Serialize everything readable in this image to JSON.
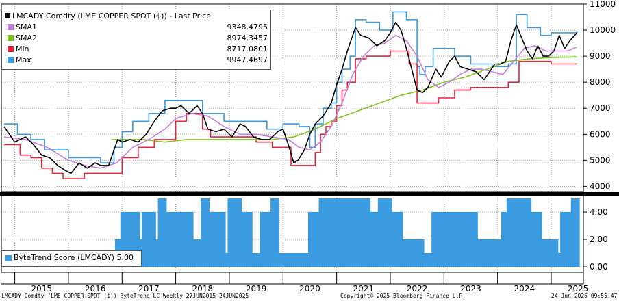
{
  "chart_data": {
    "type": "line",
    "x_unit": "year",
    "xlim": [
      2014.75,
      2025.6
    ],
    "top_panel": {
      "title": "LMCADY Comdty (LME COPPER   SPOT ($)) - Last Price",
      "ylim": [
        3800,
        11000
      ],
      "yticks": [
        4000,
        5000,
        6000,
        7000,
        8000,
        9000,
        10000,
        11000
      ],
      "legend": [
        {
          "name": "SMA1",
          "value": "9348.4795",
          "color": "#c77ddc"
        },
        {
          "name": "SMA2",
          "value": "8974.3457",
          "color": "#7fc31c"
        },
        {
          "name": "Min",
          "value": "8717.0801",
          "color": "#e8243c"
        },
        {
          "name": "Max",
          "value": "9947.4697",
          "color": "#3b9be0"
        }
      ],
      "series": [
        {
          "name": "LMCADY Comdty (LME COPPER   SPOT ($)) - Last Price",
          "color": "#000000",
          "x": [
            2014.8,
            2015.0,
            2015.2,
            2015.35,
            2015.5,
            2015.65,
            2015.8,
            2015.95,
            2016.05,
            2016.2,
            2016.35,
            2016.5,
            2016.6,
            2016.75,
            2016.85,
            2016.92,
            2017.0,
            2017.15,
            2017.3,
            2017.45,
            2017.6,
            2017.75,
            2017.9,
            2018.0,
            2018.1,
            2018.25,
            2018.4,
            2018.5,
            2018.6,
            2018.75,
            2018.9,
            2019.05,
            2019.2,
            2019.3,
            2019.45,
            2019.6,
            2019.75,
            2019.9,
            2020.0,
            2020.1,
            2020.2,
            2020.28,
            2020.4,
            2020.5,
            2020.6,
            2020.75,
            2020.9,
            2021.0,
            2021.1,
            2021.2,
            2021.35,
            2021.45,
            2021.6,
            2021.75,
            2021.9,
            2022.0,
            2022.1,
            2022.2,
            2022.3,
            2022.4,
            2022.5,
            2022.6,
            2022.7,
            2022.85,
            2022.95,
            2023.1,
            2023.2,
            2023.3,
            2023.45,
            2023.6,
            2023.75,
            2023.85,
            2023.95,
            2024.05,
            2024.15,
            2024.25,
            2024.35,
            2024.45,
            2024.55,
            2024.65,
            2024.75,
            2024.85,
            2024.95,
            2025.05,
            2025.15,
            2025.25,
            2025.35,
            2025.48
          ],
          "values": [
            6300,
            5700,
            5900,
            5600,
            5200,
            5100,
            4800,
            4600,
            4500,
            4900,
            4700,
            4900,
            4800,
            4800,
            5400,
            5800,
            5700,
            5800,
            5700,
            6000,
            6500,
            6900,
            7000,
            7000,
            7100,
            6800,
            7100,
            6800,
            6200,
            6100,
            6200,
            5900,
            6400,
            6300,
            5900,
            5800,
            5800,
            6100,
            6200,
            5600,
            4900,
            5000,
            5400,
            6000,
            6400,
            6700,
            7200,
            7900,
            8500,
            9200,
            10100,
            9800,
            9700,
            9400,
            9600,
            9900,
            10300,
            10000,
            9300,
            8500,
            7700,
            7600,
            7800,
            8500,
            8200,
            8800,
            9000,
            8600,
            8500,
            8400,
            8100,
            8400,
            8700,
            8700,
            8800,
            9600,
            10200,
            9700,
            9200,
            8900,
            9400,
            9000,
            9000,
            9200,
            9800,
            9300,
            9600,
            9900
          ]
        },
        {
          "name": "SMA1",
          "color": "#c77ddc",
          "x": [
            2014.8,
            2015.2,
            2015.6,
            2016.0,
            2016.3,
            2016.6,
            2016.9,
            2017.2,
            2017.5,
            2017.8,
            2018.0,
            2018.3,
            2018.6,
            2018.9,
            2019.2,
            2019.5,
            2019.8,
            2020.1,
            2020.3,
            2020.5,
            2020.7,
            2020.9,
            2021.1,
            2021.3,
            2021.5,
            2021.7,
            2021.9,
            2022.1,
            2022.3,
            2022.5,
            2022.7,
            2022.9,
            2023.1,
            2023.3,
            2023.5,
            2023.7,
            2023.9,
            2024.1,
            2024.3,
            2024.5,
            2024.7,
            2024.9,
            2025.1,
            2025.3,
            2025.48
          ],
          "values": [
            5900,
            5800,
            5500,
            5000,
            4800,
            4700,
            4900,
            5500,
            5800,
            6200,
            6600,
            6800,
            6700,
            6300,
            6000,
            6000,
            5900,
            5800,
            5500,
            5400,
            5700,
            6300,
            7200,
            8300,
            9000,
            9400,
            9500,
            9800,
            9600,
            9000,
            8100,
            7800,
            8000,
            8300,
            8500,
            8500,
            8400,
            8300,
            8800,
            9300,
            9400,
            9200,
            9200,
            9200,
            9350
          ]
        },
        {
          "name": "SMA2",
          "color": "#7fc31c",
          "x": [
            2016.8,
            2017.0,
            2017.4,
            2017.8,
            2018.2,
            2018.6,
            2019.0,
            2019.4,
            2019.8,
            2020.2,
            2020.6,
            2021.0,
            2021.4,
            2021.8,
            2022.2,
            2022.6,
            2023.0,
            2023.4,
            2023.8,
            2024.2,
            2024.6,
            2025.0,
            2025.48
          ],
          "values": [
            5800,
            5800,
            5800,
            5700,
            5800,
            5800,
            5800,
            5800,
            5800,
            5900,
            6200,
            6600,
            6900,
            7200,
            7500,
            7700,
            8000,
            8200,
            8500,
            8800,
            8900,
            8950,
            8970
          ]
        },
        {
          "name": "Min",
          "color": "#e8243c",
          "step": true,
          "x": [
            2014.8,
            2015.1,
            2015.3,
            2015.5,
            2015.7,
            2015.9,
            2016.3,
            2016.9,
            2017.0,
            2017.3,
            2017.6,
            2018.0,
            2018.2,
            2018.5,
            2018.65,
            2019.2,
            2019.5,
            2019.8,
            2020.15,
            2020.3,
            2020.45,
            2020.6,
            2020.7,
            2020.8,
            2020.9,
            2021.0,
            2021.1,
            2021.2,
            2021.35,
            2021.55,
            2021.8,
            2022.0,
            2022.35,
            2022.5,
            2022.9,
            2023.2,
            2023.5,
            2023.8,
            2024.0,
            2024.2,
            2024.4,
            2024.7,
            2025.0,
            2025.48
          ],
          "values": [
            5600,
            5200,
            5100,
            4700,
            4500,
            4300,
            4500,
            4500,
            5100,
            5500,
            5800,
            6500,
            6800,
            6200,
            5900,
            5900,
            5700,
            5500,
            4800,
            4800,
            4800,
            5300,
            6000,
            6300,
            6500,
            7100,
            7700,
            8000,
            8900,
            9000,
            9000,
            9200,
            8700,
            7200,
            7400,
            7700,
            7800,
            7800,
            7800,
            8000,
            8800,
            8800,
            8700,
            8700
          ]
        },
        {
          "name": "Max",
          "color": "#3b9be0",
          "step": true,
          "x": [
            2014.8,
            2015.05,
            2015.3,
            2015.55,
            2016.0,
            2016.6,
            2016.85,
            2017.0,
            2017.2,
            2017.5,
            2017.8,
            2018.5,
            2018.9,
            2019.3,
            2019.7,
            2020.0,
            2020.3,
            2020.5,
            2020.6,
            2020.75,
            2020.9,
            2021.0,
            2021.1,
            2021.25,
            2021.35,
            2021.55,
            2021.8,
            2022.05,
            2022.3,
            2022.5,
            2022.55,
            2022.65,
            2022.8,
            2023.2,
            2023.5,
            2023.9,
            2024.2,
            2024.35,
            2024.55,
            2024.8,
            2025.0,
            2025.48
          ],
          "values": [
            6400,
            6000,
            5800,
            5400,
            5100,
            4900,
            5500,
            6100,
            6500,
            6800,
            7300,
            6800,
            6500,
            6500,
            6200,
            6400,
            6300,
            5500,
            6400,
            7000,
            7200,
            8000,
            8500,
            9000,
            10400,
            10300,
            10000,
            10700,
            10400,
            8600,
            8300,
            8600,
            9300,
            9000,
            8700,
            8600,
            8700,
            10600,
            10100,
            9800,
            9900,
            9950
          ]
        }
      ]
    },
    "bottom_panel": {
      "ylim": [
        -0.4,
        5.2
      ],
      "yticks": [
        "0.00",
        "2.00",
        "4.00"
      ],
      "legend": {
        "name": "ByteTrend Score (LMCADY)",
        "value": "5.00",
        "color": "#3b9be0"
      },
      "series": [
        {
          "name": "ByteTrend Score (LMCADY)",
          "type": "bar",
          "color": "#3b9be0",
          "x": [
            2015.0,
            2015.2,
            2015.4,
            2015.6,
            2015.8,
            2016.0,
            2016.2,
            2016.4,
            2016.6,
            2016.8,
            2016.95,
            2017.05,
            2017.15,
            2017.25,
            2017.35,
            2017.45,
            2017.55,
            2017.65,
            2017.75,
            2017.85,
            2017.95,
            2018.05,
            2018.15,
            2018.25,
            2018.35,
            2018.45,
            2018.55,
            2018.65,
            2018.75,
            2018.85,
            2018.95,
            2019.05,
            2019.15,
            2019.25,
            2019.35,
            2019.45,
            2019.55,
            2019.65,
            2019.75,
            2019.85,
            2019.95,
            2020.05,
            2020.15,
            2020.25,
            2020.35,
            2020.45,
            2020.55,
            2020.65,
            2020.75,
            2020.85,
            2020.95,
            2021.05,
            2021.15,
            2021.25,
            2021.35,
            2021.45,
            2021.55,
            2021.65,
            2021.75,
            2021.85,
            2021.95,
            2022.05,
            2022.15,
            2022.25,
            2022.35,
            2022.45,
            2022.55,
            2022.65,
            2022.75,
            2022.85,
            2022.95,
            2023.05,
            2023.15,
            2023.25,
            2023.35,
            2023.45,
            2023.55,
            2023.65,
            2023.75,
            2023.85,
            2023.95,
            2024.05,
            2024.15,
            2024.25,
            2024.35,
            2024.45,
            2024.55,
            2024.65,
            2024.75,
            2024.85,
            2024.95,
            2025.05,
            2025.15,
            2025.25,
            2025.35,
            2025.45
          ],
          "values": [
            0,
            0,
            0,
            0,
            0,
            0,
            0,
            0,
            0,
            0,
            2,
            4,
            4,
            4,
            2,
            4,
            4,
            2,
            5,
            4,
            4,
            4,
            4,
            4,
            2,
            2,
            5,
            4,
            4,
            4,
            1,
            5,
            5,
            4,
            4,
            1,
            1,
            4,
            4,
            5,
            1,
            1,
            1,
            1,
            1,
            1,
            4,
            4,
            5,
            5,
            5,
            5,
            5,
            5,
            5,
            5,
            5,
            4,
            4,
            5,
            5,
            4,
            4,
            2,
            2,
            2,
            2,
            1,
            1,
            4,
            4,
            4,
            4,
            4,
            4,
            4,
            4,
            2,
            2,
            2,
            2,
            2,
            4,
            5,
            5,
            5,
            5,
            4,
            4,
            2,
            2,
            2,
            1,
            4,
            4,
            5
          ]
        }
      ]
    },
    "x_tick_labels": [
      "2015",
      "2016",
      "2017",
      "2018",
      "2019",
      "2020",
      "2021",
      "2022",
      "2023",
      "2024",
      "2025"
    ],
    "footer": {
      "left": "LMCADY Comdty (LME COPPER   SPOT ($)) ByteTrend LC  Weekly 27JUN2015-24JUN2025",
      "center": "Copyright© 2025 Bloomberg Finance L.P.",
      "right": "24-Jun-2025 09:55:47"
    }
  }
}
